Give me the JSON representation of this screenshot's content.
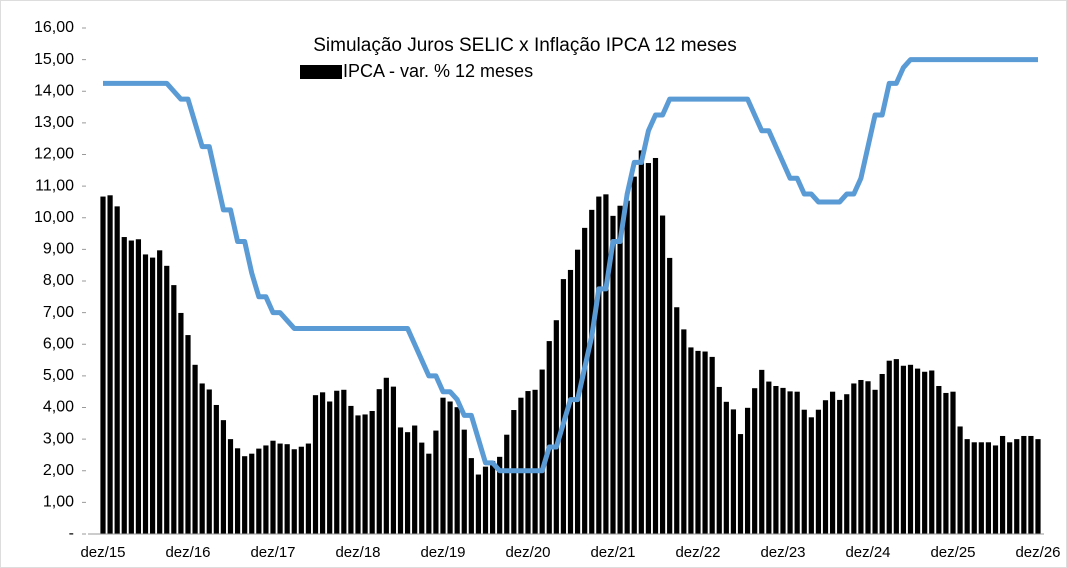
{
  "chart_data": {
    "type": "bar-line",
    "title": "Simulação Juros SELIC x Inflação IPCA 12 meses",
    "categories": [
      "dez/15",
      null,
      null,
      null,
      null,
      null,
      null,
      null,
      null,
      null,
      null,
      null,
      "dez/16",
      null,
      null,
      null,
      null,
      null,
      null,
      null,
      null,
      null,
      null,
      null,
      "dez/17",
      null,
      null,
      null,
      null,
      null,
      null,
      null,
      null,
      null,
      null,
      null,
      "dez/18",
      null,
      null,
      null,
      null,
      null,
      null,
      null,
      null,
      null,
      null,
      null,
      "dez/19",
      null,
      null,
      null,
      null,
      null,
      null,
      null,
      null,
      null,
      null,
      null,
      "dez/20",
      null,
      null,
      null,
      null,
      null,
      null,
      null,
      null,
      null,
      null,
      null,
      "dez/21",
      null,
      null,
      null,
      null,
      null,
      null,
      null,
      null,
      null,
      null,
      null,
      "dez/22",
      null,
      null,
      null,
      null,
      null,
      null,
      null,
      null,
      null,
      null,
      null,
      "dez/23",
      null,
      null,
      null,
      null,
      null,
      null,
      null,
      null,
      null,
      null,
      null,
      "dez/24",
      null,
      null,
      null,
      null,
      null,
      null,
      null,
      null,
      null,
      null,
      null,
      "dez/25",
      null,
      null,
      null,
      null,
      null,
      null,
      null,
      null,
      null,
      null,
      null,
      "dez/26"
    ],
    "series": [
      {
        "name": "IPCA - var. % 12 meses",
        "kind": "bar",
        "color": "#000000",
        "values": [
          10.67,
          10.71,
          10.36,
          9.39,
          9.28,
          9.32,
          8.84,
          8.74,
          8.97,
          8.48,
          7.87,
          6.99,
          6.29,
          5.35,
          4.76,
          4.57,
          4.08,
          3.6,
          3.0,
          2.71,
          2.46,
          2.54,
          2.7,
          2.8,
          2.95,
          2.86,
          2.84,
          2.68,
          2.76,
          2.86,
          4.39,
          4.48,
          4.19,
          4.53,
          4.56,
          4.05,
          3.75,
          3.78,
          3.89,
          4.58,
          4.94,
          4.66,
          3.37,
          3.22,
          3.43,
          2.89,
          2.54,
          3.27,
          4.31,
          4.19,
          4.01,
          3.3,
          2.4,
          1.88,
          2.13,
          2.31,
          2.44,
          3.14,
          3.92,
          4.31,
          4.52,
          4.56,
          5.2,
          6.1,
          6.76,
          8.06,
          8.35,
          8.99,
          9.68,
          10.25,
          10.67,
          10.74,
          10.06,
          10.38,
          10.54,
          11.3,
          12.13,
          11.73,
          11.89,
          10.07,
          8.73,
          7.17,
          6.47,
          5.9,
          5.79,
          5.77,
          5.6,
          4.65,
          4.18,
          3.94,
          3.16,
          3.99,
          4.61,
          5.19,
          4.82,
          4.68,
          4.62,
          4.51,
          4.5,
          3.93,
          3.69,
          3.93,
          4.23,
          4.5,
          4.24,
          4.42,
          4.76,
          4.87,
          4.83,
          4.56,
          5.06,
          5.48,
          5.53,
          5.32,
          5.35,
          5.23,
          5.13,
          5.17,
          4.68,
          4.46,
          4.5,
          3.4,
          3.0,
          2.9,
          2.9,
          2.9,
          2.8,
          3.1,
          2.9,
          3.0,
          3.1,
          3.1,
          3.0
        ]
      },
      {
        "kind": "line",
        "color": "#5b9bd5",
        "values": [
          14.25,
          14.25,
          14.25,
          14.25,
          14.25,
          14.25,
          14.25,
          14.25,
          14.25,
          14.25,
          14.0,
          13.75,
          13.75,
          13.0,
          12.25,
          12.25,
          11.25,
          10.25,
          10.25,
          9.25,
          9.25,
          8.25,
          7.5,
          7.5,
          7.0,
          7.0,
          6.75,
          6.5,
          6.5,
          6.5,
          6.5,
          6.5,
          6.5,
          6.5,
          6.5,
          6.5,
          6.5,
          6.5,
          6.5,
          6.5,
          6.5,
          6.5,
          6.5,
          6.5,
          6.0,
          5.5,
          5.0,
          5.0,
          4.5,
          4.5,
          4.25,
          3.75,
          3.75,
          3.0,
          2.25,
          2.25,
          2.0,
          2.0,
          2.0,
          2.0,
          2.0,
          2.0,
          2.0,
          2.75,
          2.75,
          3.5,
          4.25,
          4.25,
          5.25,
          6.25,
          7.75,
          7.75,
          9.25,
          9.25,
          10.75,
          11.75,
          11.75,
          12.75,
          13.25,
          13.25,
          13.75,
          13.75,
          13.75,
          13.75,
          13.75,
          13.75,
          13.75,
          13.75,
          13.75,
          13.75,
          13.75,
          13.75,
          13.25,
          12.75,
          12.75,
          12.25,
          11.75,
          11.25,
          11.25,
          10.75,
          10.75,
          10.5,
          10.5,
          10.5,
          10.5,
          10.75,
          10.75,
          11.25,
          12.25,
          13.25,
          13.25,
          14.25,
          14.25,
          14.75,
          15.0,
          15.0,
          15.0,
          15.0,
          15.0,
          15.0,
          15.0,
          15.0,
          15.0,
          15.0,
          15.0,
          15.0,
          15.0,
          15.0,
          15.0,
          15.0,
          15.0,
          15.0,
          15.0
        ]
      }
    ],
    "ylim": [
      0,
      16
    ],
    "yticks": [
      {
        "value": 0,
        "label": "-"
      },
      {
        "value": 1,
        "label": "1,00"
      },
      {
        "value": 2,
        "label": "2,00"
      },
      {
        "value": 3,
        "label": "3,00"
      },
      {
        "value": 4,
        "label": "4,00"
      },
      {
        "value": 5,
        "label": "5,00"
      },
      {
        "value": 6,
        "label": "6,00"
      },
      {
        "value": 7,
        "label": "7,00"
      },
      {
        "value": 8,
        "label": "8,00"
      },
      {
        "value": 9,
        "label": "9,00"
      },
      {
        "value": 10,
        "label": "10,00"
      },
      {
        "value": 11,
        "label": "11,00"
      },
      {
        "value": 12,
        "label": "12,00"
      },
      {
        "value": 13,
        "label": "13,00"
      },
      {
        "value": 14,
        "label": "14,00"
      },
      {
        "value": 15,
        "label": "15,00"
      },
      {
        "value": 16,
        "label": "16,00"
      }
    ],
    "grid": false
  }
}
